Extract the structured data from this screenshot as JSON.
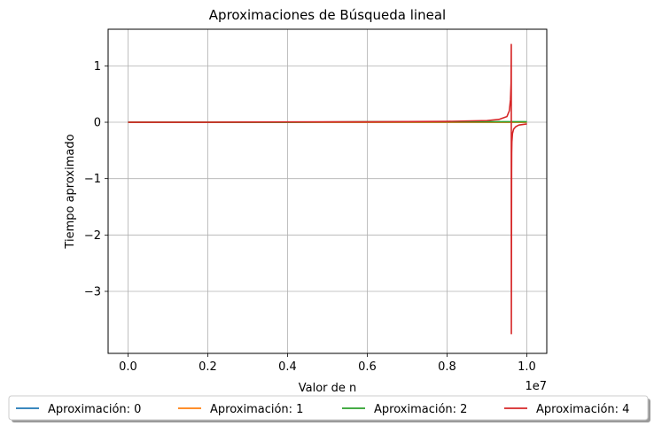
{
  "chart_data": {
    "type": "line",
    "title": "Aproximaciones de Búsqueda lineal",
    "xlabel": "Valor de n",
    "ylabel": "Tiempo aproximado",
    "x_offset_label": "1e7",
    "x_unit": 10000000,
    "xlim": [
      -0.05,
      1.05
    ],
    "ylim": [
      -4.1,
      1.65
    ],
    "x_ticks": [
      0.0,
      0.2,
      0.4,
      0.6,
      0.8,
      1.0
    ],
    "x_tick_labels": [
      "0.0",
      "0.2",
      "0.4",
      "0.6",
      "0.8",
      "1.0"
    ],
    "y_ticks": [
      1,
      0,
      -1,
      -2,
      -3
    ],
    "y_tick_labels": [
      "1",
      "0",
      "−1",
      "−2",
      "−3"
    ],
    "grid": true,
    "legend_position": "bottom-center",
    "series": [
      {
        "name": "Aproximación: 0",
        "color": "#1f77b4",
        "x": [
          0.0,
          0.2,
          0.4,
          0.6,
          0.8,
          1.0
        ],
        "y": [
          0.0,
          0.0,
          0.0,
          0.0,
          0.0,
          0.0
        ]
      },
      {
        "name": "Aproximación: 1",
        "color": "#ff7f0e",
        "x": [
          0.0,
          0.2,
          0.4,
          0.6,
          0.8,
          1.0
        ],
        "y": [
          0.0,
          0.0,
          0.0,
          0.0,
          0.0,
          0.0
        ]
      },
      {
        "name": "Aproximación: 2",
        "color": "#2ca02c",
        "x": [
          0.0,
          0.2,
          0.4,
          0.6,
          0.8,
          0.9,
          0.95,
          1.0
        ],
        "y": [
          0.0,
          0.0,
          0.0,
          0.01,
          0.01,
          0.01,
          0.01,
          0.01
        ]
      },
      {
        "name": "Aproximación: 4",
        "color": "#d62728",
        "x": [
          0.0,
          0.2,
          0.4,
          0.6,
          0.8,
          0.9,
          0.93,
          0.95,
          0.956,
          0.959,
          0.9605,
          0.961,
          0.9612,
          0.9618,
          0.962,
          0.9625,
          0.964,
          0.967,
          0.972,
          0.98,
          0.99,
          1.0
        ],
        "y": [
          0.0,
          0.0,
          0.005,
          0.008,
          0.015,
          0.03,
          0.05,
          0.1,
          0.2,
          0.4,
          0.7,
          1.38,
          -3.75,
          -0.9,
          -0.55,
          -0.35,
          -0.2,
          -0.12,
          -0.08,
          -0.05,
          -0.04,
          -0.03
        ]
      }
    ]
  }
}
